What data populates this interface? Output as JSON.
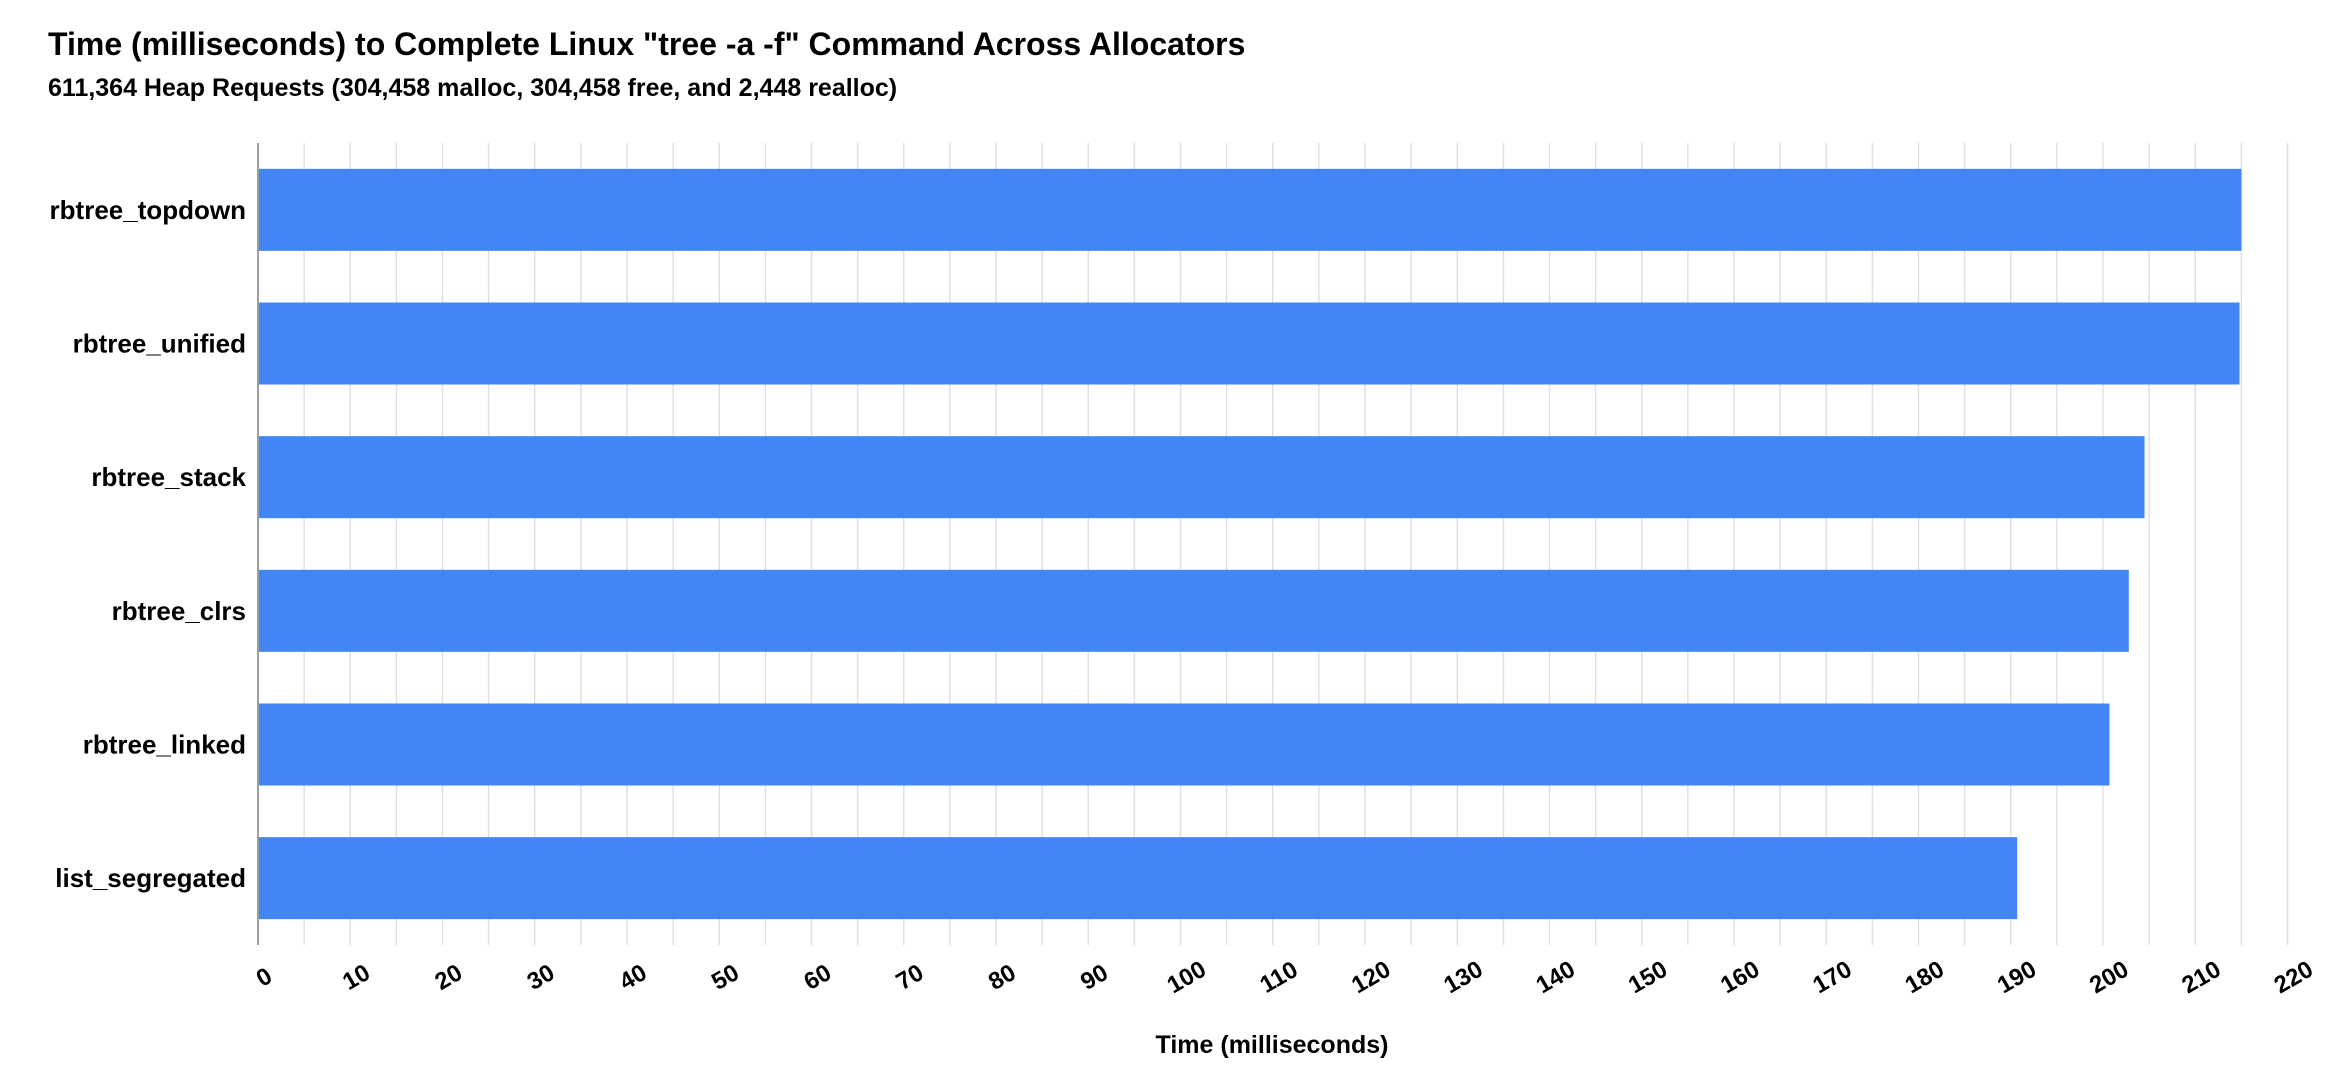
{
  "chart_data": {
    "type": "bar",
    "orientation": "horizontal",
    "title": "Time (milliseconds) to Complete Linux \"tree -a -f\" Command Across Allocators",
    "subtitle": "611,364 Heap Requests (304,458 malloc, 304,458 free, and  2,448 realloc)",
    "xlabel": "Time (milliseconds)",
    "ylabel": "",
    "categories": [
      "rbtree_topdown",
      "rbtree_unified",
      "rbtree_stack",
      "rbtree_clrs",
      "rbtree_linked",
      "list_segregated"
    ],
    "values": [
      215,
      214.8,
      204.5,
      202.8,
      200.7,
      190.7
    ],
    "xlim": [
      0,
      222
    ],
    "xticks": [
      "0",
      "10",
      "20",
      "30",
      "40",
      "50",
      "60",
      "70",
      "80",
      "90",
      "100",
      "110",
      "120",
      "130",
      "140",
      "150",
      "160",
      "170",
      "180",
      "190",
      "200",
      "210",
      "220"
    ],
    "minor_gridlines": true,
    "grid": true,
    "legend": "none",
    "bar_color": "#4285f4",
    "grid_color": "#e0e0e0",
    "axis_color": "#9e9e9e"
  }
}
